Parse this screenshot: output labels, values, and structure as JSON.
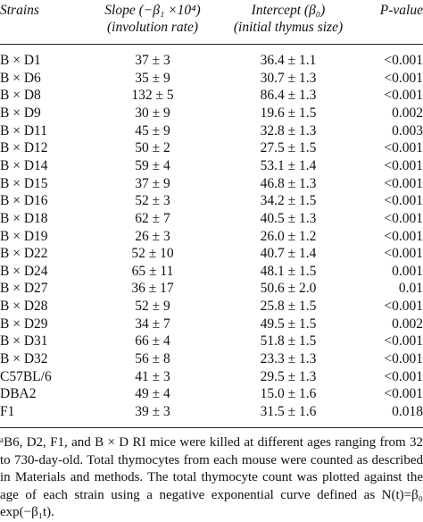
{
  "table": {
    "columns": [
      [
        "Strains"
      ],
      [
        "Slope (−β₁ ×10⁴)",
        "(involution rate)"
      ],
      [
        "Intercept (β₀)",
        "(initial thymus size)"
      ],
      [
        "P-value"
      ]
    ],
    "rows": [
      [
        "B × D1",
        "37 ± 3",
        "36.4 ± 1.1",
        "<0.001"
      ],
      [
        "B × D6",
        "35 ± 9",
        "30.7 ± 1.3",
        "<0.001"
      ],
      [
        "B × D8",
        "132 ± 5",
        "86.4 ± 1.3",
        "<0.001"
      ],
      [
        "B × D9",
        "30 ± 9",
        "19.6 ± 1.5",
        "0.002"
      ],
      [
        "B × D11",
        "45 ± 9",
        "32.8 ± 1.3",
        "0.003"
      ],
      [
        "B × D12",
        "50 ± 2",
        "27.5 ± 1.5",
        "<0.001"
      ],
      [
        "B × D14",
        "59 ± 4",
        "53.1 ± 1.4",
        "<0.001"
      ],
      [
        "B × D15",
        "37 ± 9",
        "46.8 ± 1.3",
        "<0.001"
      ],
      [
        "B × D16",
        "52 ± 3",
        "34.2 ± 1.5",
        "<0.001"
      ],
      [
        "B × D18",
        "62 ± 7",
        "40.5 ± 1.3",
        "<0.001"
      ],
      [
        "B × D19",
        "26 ± 3",
        "26.0 ± 1.2",
        "<0.001"
      ],
      [
        "B × D22",
        "52 ± 10",
        "40.7 ± 1.4",
        "<0.001"
      ],
      [
        "B × D24",
        "65 ± 11",
        "48.1 ± 1.5",
        "0.001"
      ],
      [
        "B × D27",
        "36 ± 17",
        "50.6 ± 2.0",
        "0.01"
      ],
      [
        "B × D28",
        "52 ± 9",
        "25.8 ± 1.5",
        "<0.001"
      ],
      [
        "B × D29",
        "34 ± 7",
        "49.5 ± 1.5",
        "0.002"
      ],
      [
        "B × D31",
        "66 ± 4",
        "51.8 ± 1.5",
        "<0.001"
      ],
      [
        "B × D32",
        "56 ± 8",
        "23.3 ± 1.3",
        "<0.001"
      ],
      [
        "C57BL/6",
        "41 ± 3",
        "29.5 ± 1.3",
        "<0.001"
      ],
      [
        "DBA2",
        "49 ± 4",
        "15.0 ± 1.6",
        "<0.001"
      ],
      [
        "F1",
        "39 ± 3",
        "31.5 ± 1.6",
        "0.018"
      ]
    ],
    "footnote": "ᵃB6, D2, F1, and B × D RI mice were killed at different ages ranging from 32 to 730-day-old. Total thymocytes from each mouse were counted as described in Materials and methods. The total thymocyte count was plotted against the age of each strain using a negative exponential curve defined as N(t)=β₀ exp(−β₁t)."
  }
}
